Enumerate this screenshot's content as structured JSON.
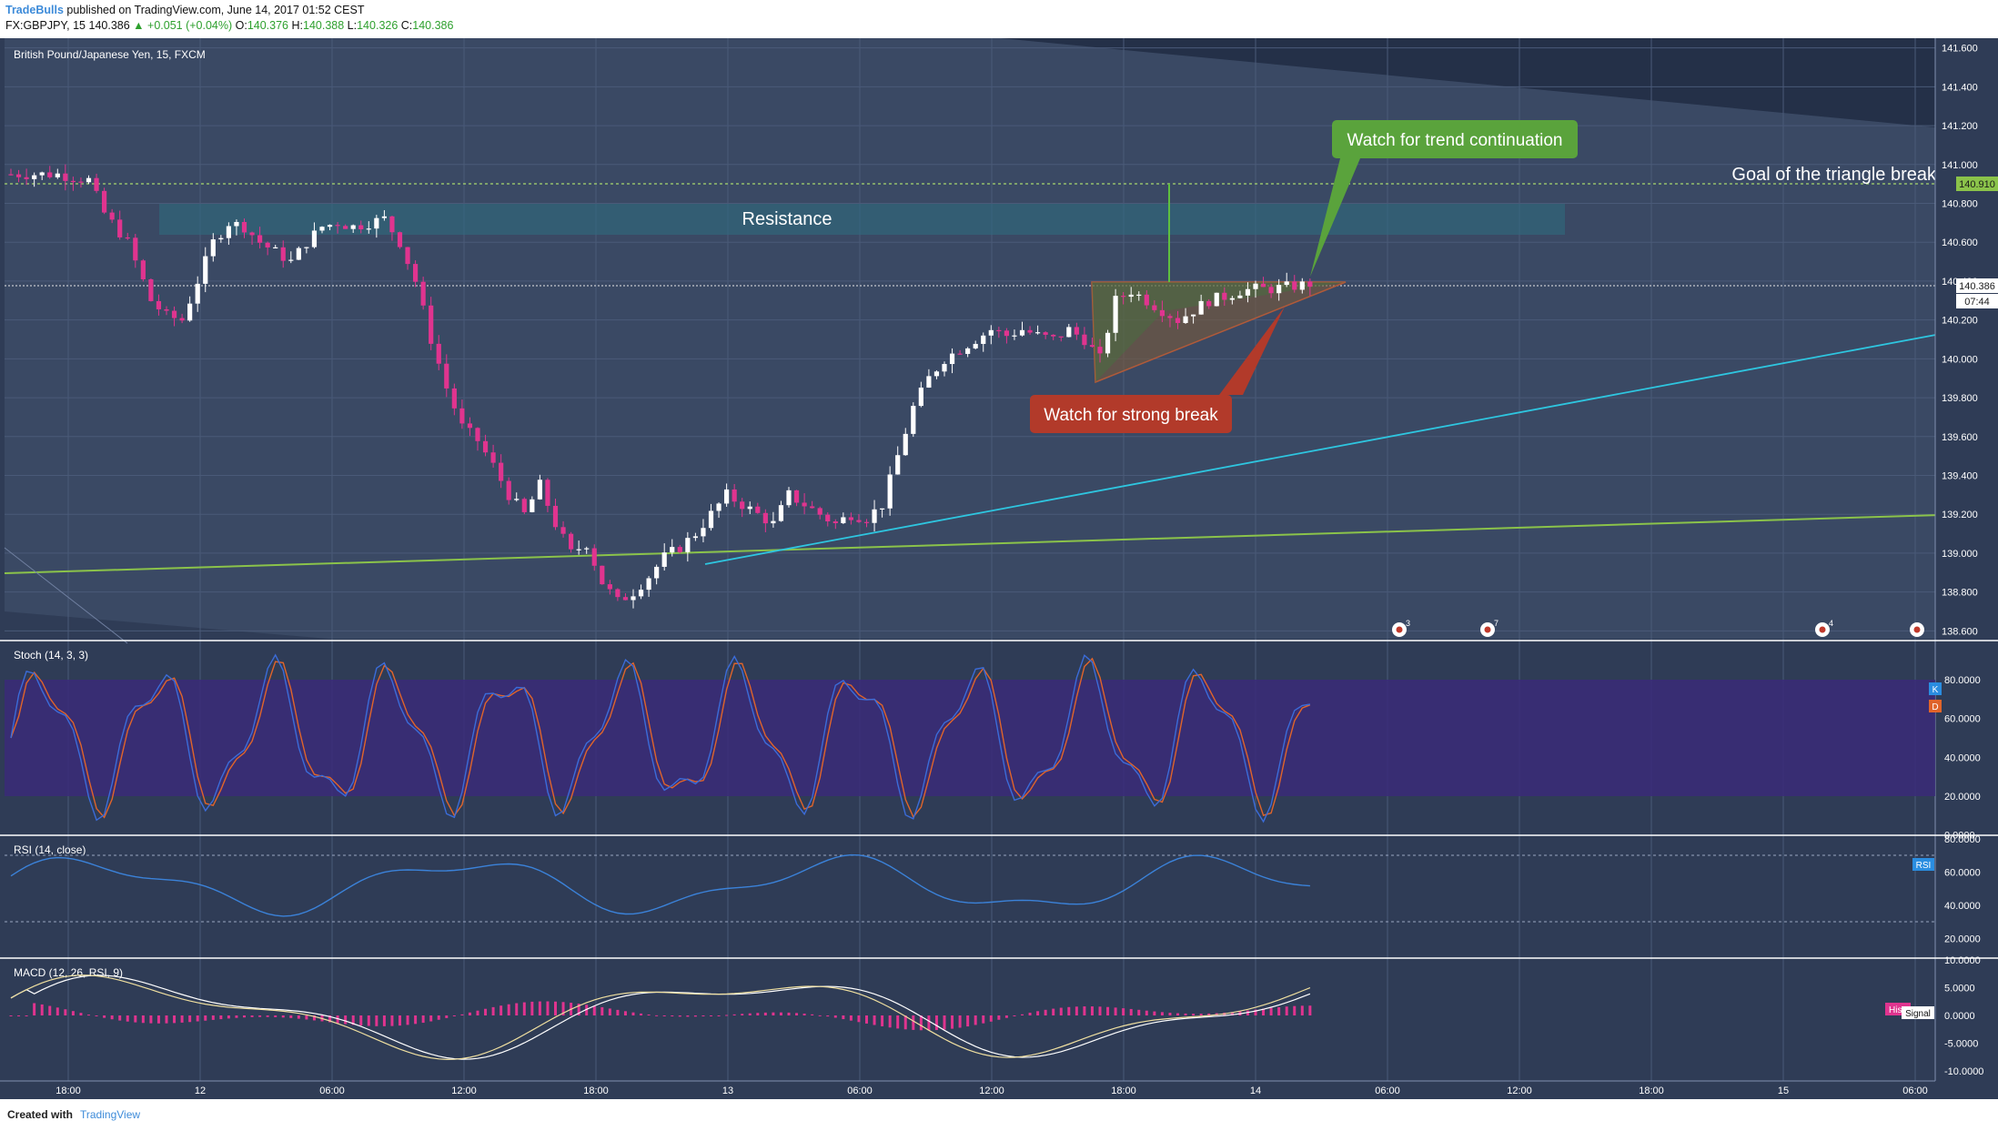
{
  "header": {
    "brand": "TradeBulls",
    "published": "published on TradingView.com, June 14, 2017 01:52 CEST",
    "symbol": "FX:GBPJPY, 15",
    "last": "140.386",
    "change": "▲ +0.051 (+0.04%)",
    "o_label": "O:",
    "o_val": "140.376",
    "h_label": "H:",
    "h_val": "140.388",
    "l_label": "L:",
    "l_val": "140.326",
    "c_label": "C:",
    "c_val": "140.386"
  },
  "footer": {
    "created": "Created with",
    "brand": "TradingView"
  },
  "colors": {
    "panel_bg": "#2f3c56",
    "chart_bg": "#3a4964",
    "grid": "#4a5a78",
    "up_candle": "#ffffff",
    "down_candle": "#e0348f",
    "stoch_k": "#3b6cd9",
    "stoch_d": "#e0642a",
    "stoch_band": "#3a2a78",
    "rsi": "#3b82d9",
    "macd_hist": "#e0348f",
    "trend_green": "#8bc34a",
    "trend_cyan": "#2ec6e0",
    "callout_green": "#5aa33c",
    "callout_red": "#b23a2a"
  },
  "chart_data": [
    {
      "type": "candlestick",
      "title": "British Pound/Japanese Yen, 15, FXCM",
      "ylim": [
        138.55,
        141.65
      ],
      "yticks": [
        "141.600",
        "141.400",
        "141.200",
        "141.000",
        "140.800",
        "140.600",
        "140.400",
        "140.200",
        "140.000",
        "139.800",
        "139.600",
        "139.400",
        "139.200",
        "139.000",
        "138.800",
        "138.600"
      ],
      "xticks": [
        "18:00",
        "12",
        "06:00",
        "12:00",
        "18:00",
        "13",
        "06:00",
        "12:00",
        "18:00",
        "14",
        "06:00",
        "12:00",
        "18:00",
        "15",
        "06:00"
      ],
      "price_marker": {
        "value": "140.386",
        "countdown": "07:44"
      },
      "goal_marker": "140.910",
      "annotations": {
        "resistance": "Resistance",
        "goal": "Goal of the triangle break",
        "trend_callout": "Watch for trend continuation",
        "break_callout": "Watch for strong break"
      },
      "events": [
        "3",
        "7",
        "4",
        ""
      ],
      "anchors": [
        [
          0,
          140.95
        ],
        [
          6,
          140.95
        ],
        [
          10,
          140.92
        ],
        [
          12,
          140.75
        ],
        [
          15,
          140.6
        ],
        [
          18,
          140.3
        ],
        [
          20,
          140.22
        ],
        [
          22,
          140.2
        ],
        [
          24,
          140.4
        ],
        [
          26,
          140.6
        ],
        [
          28,
          140.7
        ],
        [
          30,
          140.68
        ],
        [
          32,
          140.6
        ],
        [
          34,
          140.55
        ],
        [
          36,
          140.5
        ],
        [
          38,
          140.6
        ],
        [
          40,
          140.68
        ],
        [
          42,
          140.7
        ],
        [
          44,
          140.68
        ],
        [
          46,
          140.7
        ],
        [
          48,
          140.72
        ],
        [
          50,
          140.6
        ],
        [
          52,
          140.4
        ],
        [
          54,
          140.1
        ],
        [
          56,
          139.85
        ],
        [
          58,
          139.65
        ],
        [
          60,
          139.58
        ],
        [
          62,
          139.45
        ],
        [
          64,
          139.3
        ],
        [
          66,
          139.2
        ],
        [
          68,
          139.35
        ],
        [
          70,
          139.15
        ],
        [
          72,
          139.0
        ],
        [
          74,
          139.05
        ],
        [
          76,
          138.85
        ],
        [
          78,
          138.75
        ],
        [
          80,
          138.8
        ],
        [
          82,
          138.88
        ],
        [
          84,
          138.98
        ],
        [
          86,
          139.03
        ],
        [
          88,
          139.1
        ],
        [
          90,
          139.2
        ],
        [
          92,
          139.3
        ],
        [
          94,
          139.25
        ],
        [
          96,
          139.2
        ],
        [
          98,
          139.15
        ],
        [
          100,
          139.3
        ],
        [
          102,
          139.25
        ],
        [
          104,
          139.2
        ],
        [
          106,
          139.15
        ],
        [
          108,
          139.2
        ],
        [
          110,
          139.18
        ],
        [
          112,
          139.25
        ],
        [
          114,
          139.5
        ],
        [
          116,
          139.75
        ],
        [
          118,
          139.9
        ],
        [
          120,
          140.0
        ],
        [
          122,
          140.05
        ],
        [
          124,
          140.1
        ],
        [
          126,
          140.15
        ],
        [
          128,
          140.12
        ],
        [
          130,
          140.15
        ],
        [
          132,
          140.12
        ],
        [
          134,
          140.1
        ],
        [
          136,
          140.15
        ],
        [
          138,
          140.1
        ],
        [
          140,
          140.0
        ],
        [
          142,
          140.3
        ],
        [
          144,
          140.35
        ],
        [
          146,
          140.3
        ],
        [
          148,
          140.25
        ],
        [
          150,
          140.2
        ],
        [
          152,
          140.25
        ],
        [
          154,
          140.3
        ],
        [
          156,
          140.32
        ],
        [
          158,
          140.35
        ],
        [
          160,
          140.36
        ],
        [
          162,
          140.36
        ],
        [
          164,
          140.37
        ],
        [
          166,
          140.38
        ],
        [
          167,
          140.386
        ]
      ]
    },
    {
      "type": "line",
      "title": "Stoch (14, 3, 3)",
      "ylim": [
        0,
        100
      ],
      "yticks": [
        "80.0000",
        "60.0000",
        "40.0000",
        "20.0000",
        "0.0000"
      ],
      "series": [
        {
          "name": "K"
        },
        {
          "name": "D"
        }
      ]
    },
    {
      "type": "line",
      "title": "RSI (14, close)",
      "ylim": [
        10,
        85
      ],
      "yticks": [
        "80.0000",
        "60.0000",
        "40.0000",
        "20.0000"
      ],
      "series": [
        {
          "name": "RSI"
        }
      ]
    },
    {
      "type": "bar",
      "title": "MACD (12, 26, RSI, 9)",
      "ylim": [
        -11,
        11
      ],
      "yticks": [
        "10.0000",
        "5.0000",
        "0.0000",
        "-5.0000",
        "-10.0000"
      ],
      "series": [
        {
          "name": "Histogram",
          "label": "His"
        },
        {
          "name": "Signal",
          "label": "Signal"
        }
      ]
    }
  ]
}
